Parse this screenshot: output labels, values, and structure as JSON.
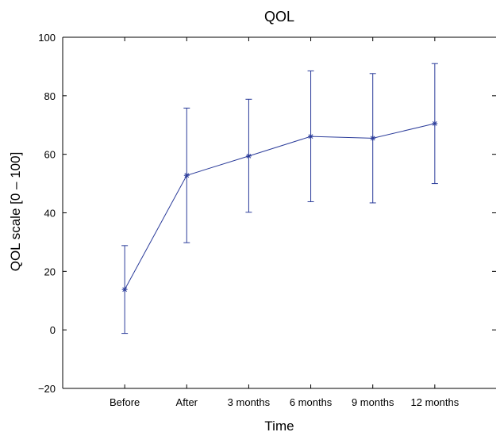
{
  "chart_data": {
    "type": "line",
    "title": "QOL",
    "xlabel": "Time",
    "ylabel": "QOL scale [0 – 100]",
    "categories": [
      "Before",
      "After",
      "3 months",
      "6 months",
      "9 months",
      "12 months"
    ],
    "series": [
      {
        "values": [
          13.8,
          52.8,
          59.4,
          66.1,
          65.5,
          70.5
        ],
        "error_low": [
          -1.2,
          29.8,
          40.2,
          43.8,
          43.4,
          50.0
        ],
        "error_high": [
          28.8,
          75.8,
          78.8,
          88.5,
          87.6,
          91.0
        ],
        "marker": "asterisk",
        "error_bars": true
      }
    ],
    "ylim": [
      -20,
      100
    ],
    "yticks": [
      -20,
      0,
      20,
      40,
      60,
      80,
      100
    ],
    "xlim": [
      0,
      7
    ],
    "grid": false,
    "legend": "none",
    "color": "#2b3c9a"
  }
}
